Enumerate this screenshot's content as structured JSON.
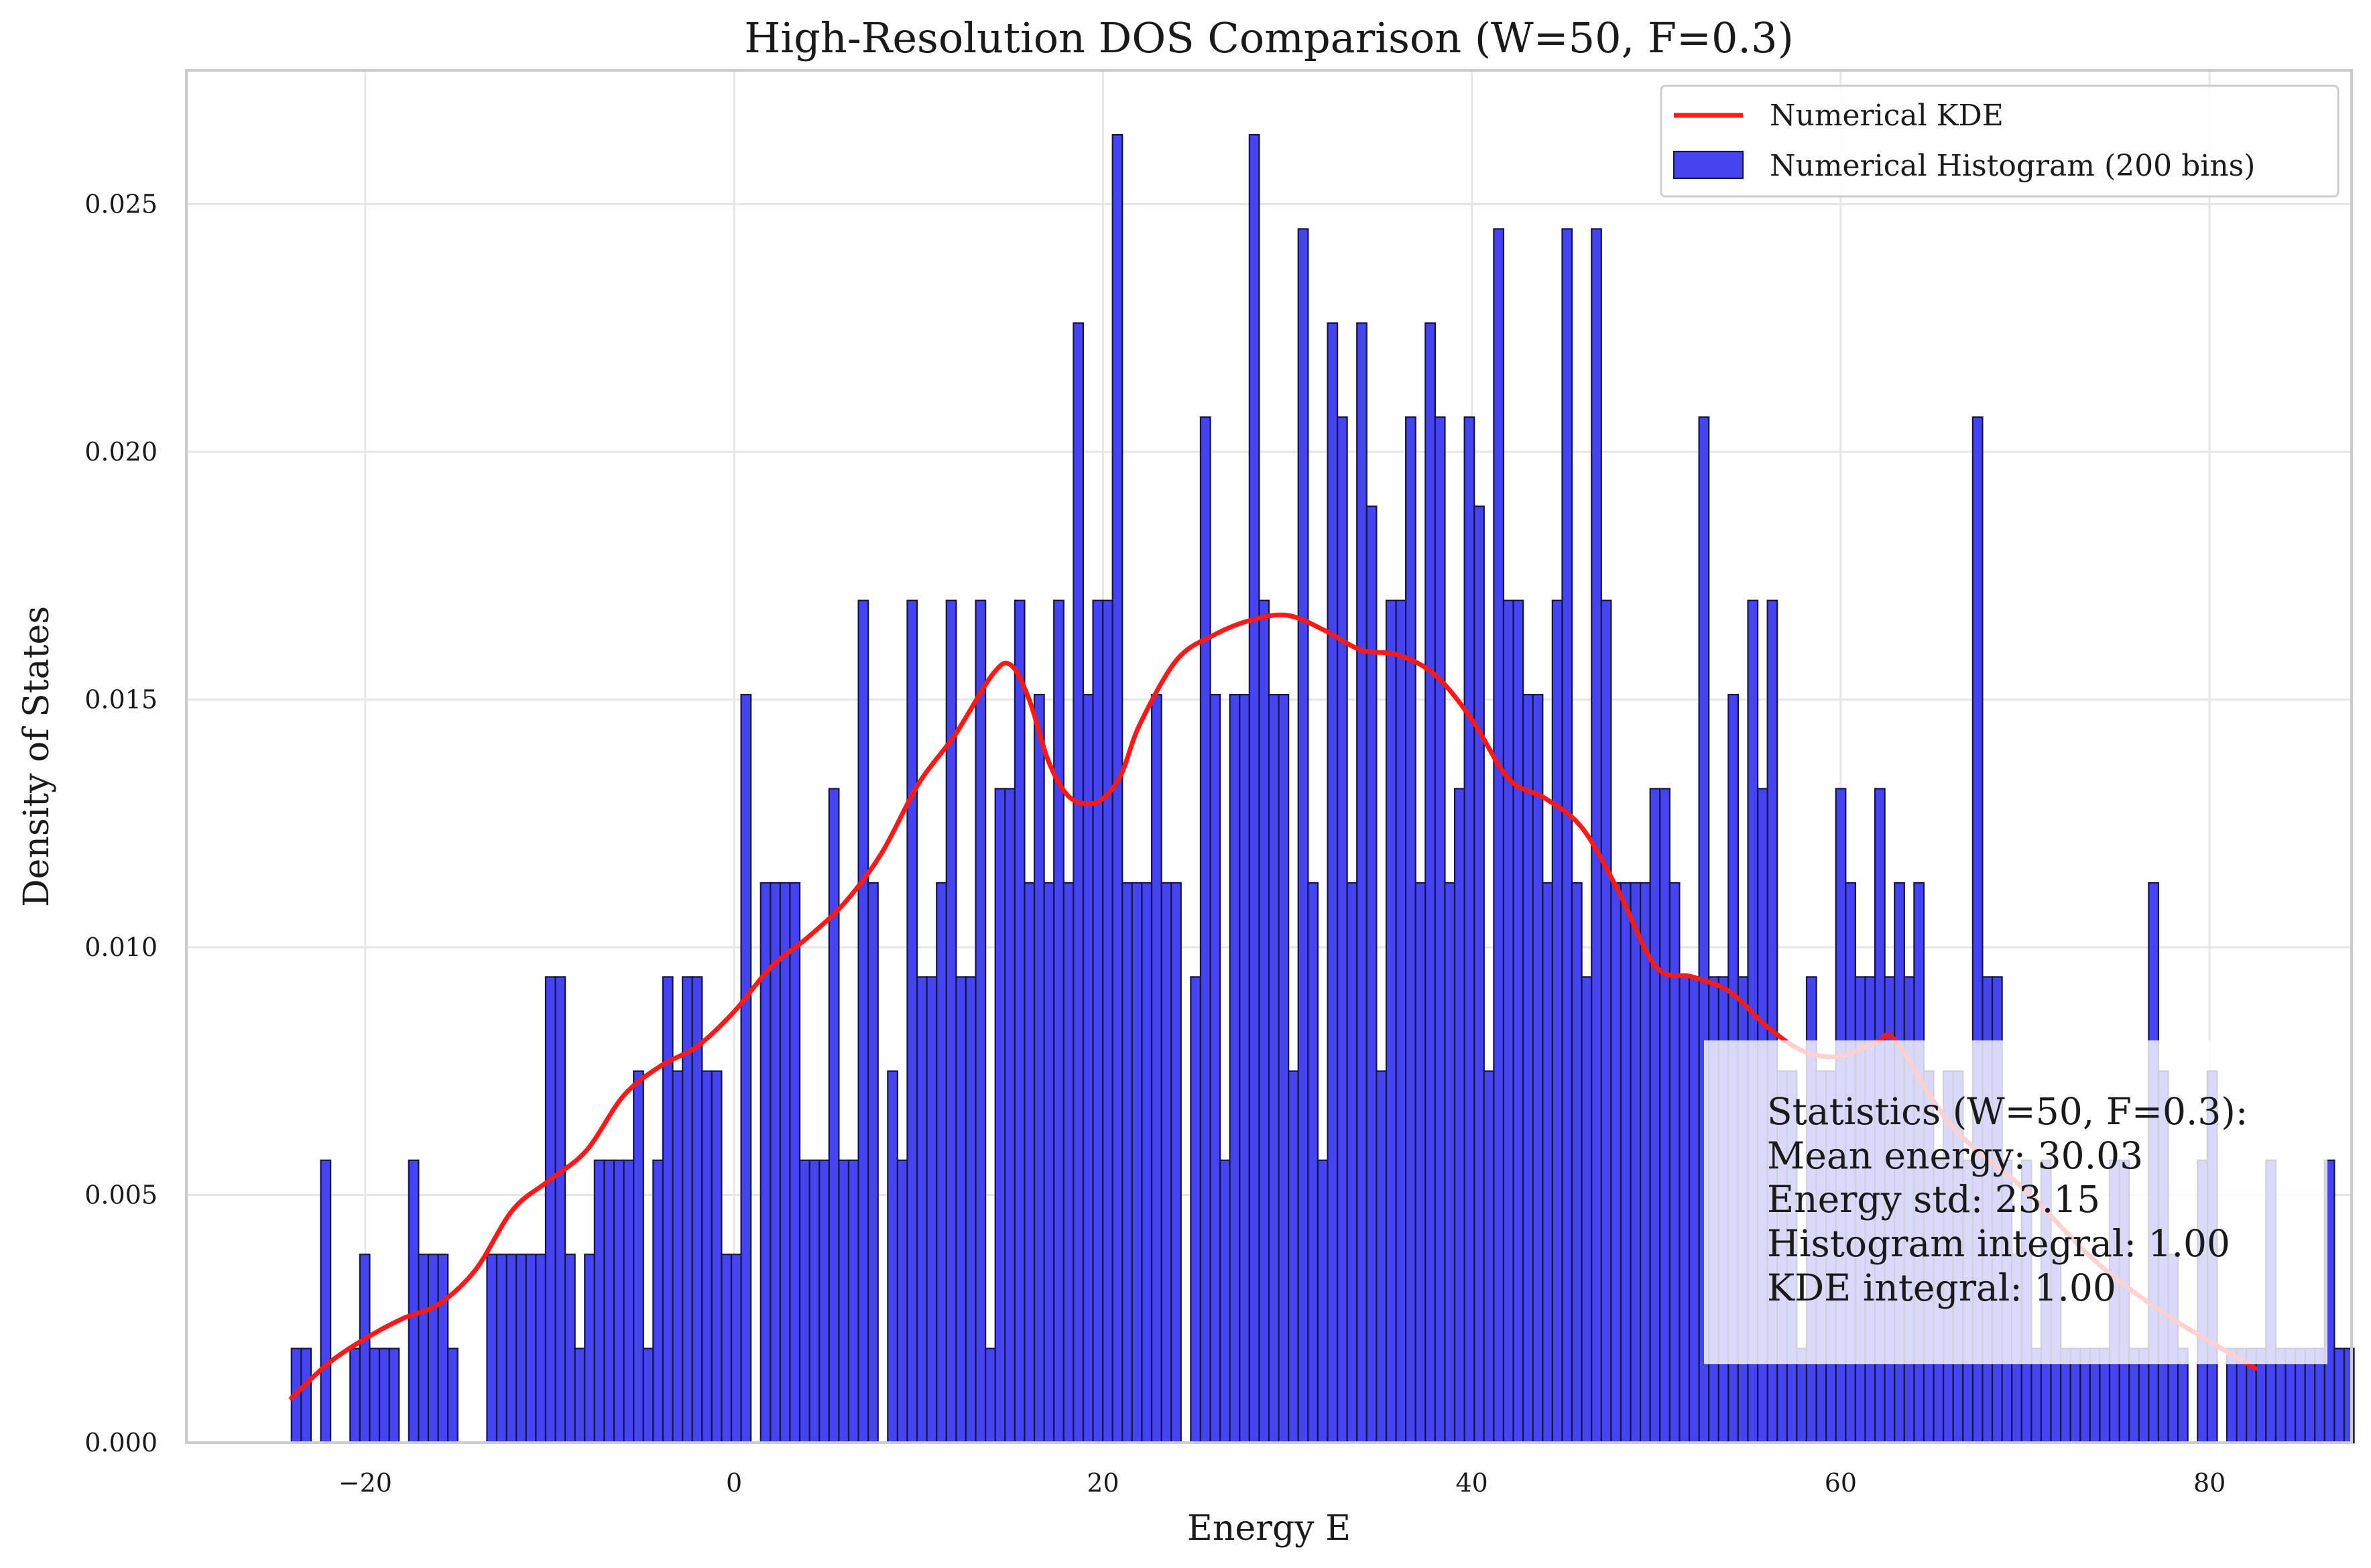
{
  "chart_data": {
    "type": "bar",
    "title": "High-Resolution DOS Comparison (W=50, F=0.3)",
    "xlabel": "Energy E",
    "ylabel": "Density of States",
    "xlim": [
      -29.7,
      87.7
    ],
    "ylim": [
      0,
      0.0277
    ],
    "x_ticks": [
      -20,
      0,
      20,
      40,
      60,
      80
    ],
    "x_tick_labels": [
      "−20",
      "0",
      "20",
      "40",
      "60",
      "80"
    ],
    "y_ticks": [
      0,
      0.005,
      0.01,
      0.015,
      0.02,
      0.025
    ],
    "y_tick_labels": [
      "0.000",
      "0.005",
      "0.010",
      "0.015",
      "0.020",
      "0.025"
    ],
    "grid": true,
    "legend_position": "upper right",
    "legend": [
      {
        "label": "Numerical KDE",
        "kind": "line",
        "color": "#ff1a1a"
      },
      {
        "label": "Numerical Histogram (200 bins)",
        "kind": "patch",
        "color": "#4444f0"
      }
    ],
    "histogram": {
      "name": "Numerical Histogram (200 bins)",
      "bin_start": -24.0,
      "bin_width": 0.53,
      "color": "#4444f0",
      "edge_color": "#15154a",
      "values": [
        0.0019,
        0.0019,
        0,
        0.0057,
        0,
        0,
        0.0019,
        0.0038,
        0.0019,
        0.0019,
        0.0019,
        0,
        0.0057,
        0.0038,
        0.0038,
        0.0038,
        0.0019,
        0,
        0,
        0,
        0.0038,
        0.0038,
        0.0038,
        0.0038,
        0.0038,
        0.0038,
        0.0094,
        0.0094,
        0.0038,
        0.0019,
        0.0038,
        0.0057,
        0.0057,
        0.0057,
        0.0057,
        0.0075,
        0.0019,
        0.0057,
        0.0094,
        0.0075,
        0.0094,
        0.0094,
        0.0075,
        0.0075,
        0.0038,
        0.0038,
        0.0151,
        0,
        0.0113,
        0.0113,
        0.0113,
        0.0113,
        0.0057,
        0.0057,
        0.0057,
        0.0132,
        0.0057,
        0.0057,
        0.017,
        0.0113,
        0,
        0.0075,
        0.0057,
        0.017,
        0.0094,
        0.0094,
        0.0113,
        0.017,
        0.0094,
        0.0094,
        0.017,
        0.0019,
        0.0132,
        0.0132,
        0.017,
        0.0113,
        0.0151,
        0.0113,
        0.017,
        0.0113,
        0.0226,
        0.0151,
        0.017,
        0.017,
        0.0264,
        0.0113,
        0.0113,
        0.0113,
        0.0151,
        0.0113,
        0.0113,
        0,
        0.0094,
        0.0207,
        0.0151,
        0.0057,
        0.0151,
        0.0151,
        0.0264,
        0.017,
        0.0151,
        0.0151,
        0.0075,
        0.0245,
        0.0113,
        0.0057,
        0.0226,
        0.0207,
        0.0113,
        0.0226,
        0.0189,
        0.0075,
        0.017,
        0.017,
        0.0207,
        0.0113,
        0.0226,
        0.0207,
        0.0113,
        0.0132,
        0.0207,
        0.0189,
        0.0075,
        0.0245,
        0.017,
        0.017,
        0.0151,
        0.0151,
        0.0113,
        0.017,
        0.0245,
        0.0113,
        0.0094,
        0.0245,
        0.017,
        0.0113,
        0.0113,
        0.0113,
        0.0113,
        0.0132,
        0.0132,
        0.0113,
        0.0094,
        0.0094,
        0.0207,
        0.0094,
        0.0094,
        0.0151,
        0.0094,
        0.017,
        0.0132,
        0.017,
        0.0075,
        0.0075,
        0.0019,
        0.0094,
        0.0075,
        0.0075,
        0.0132,
        0.0113,
        0.0094,
        0.0094,
        0.0132,
        0.0094,
        0.0113,
        0.0094,
        0.0113,
        0.0075,
        0.0057,
        0.0075,
        0.0075,
        0.0057,
        0.0207,
        0.0094,
        0.0094,
        0.0057,
        0.0038,
        0.0057,
        0.0019,
        0.0057,
        0.0038,
        0.0019,
        0.0019,
        0.0019,
        0.0019,
        0.0019,
        0.0057,
        0.0057,
        0.0019,
        0.0019,
        0.0113,
        0.0075,
        0.0038,
        0.0019,
        0,
        0.0057,
        0.0075,
        0,
        0.0019,
        0.0019,
        0.0019,
        0.0019,
        0.0057,
        0.0019,
        0.0019,
        0.0019,
        0.0019,
        0.0019,
        0.0057,
        0.0019,
        0.0019
      ]
    },
    "kde": {
      "name": "Numerical KDE",
      "color": "#ff1a1a",
      "x": [
        -24,
        -22,
        -20,
        -18,
        -16,
        -14,
        -12,
        -10,
        -8,
        -6,
        -4,
        -2,
        0,
        2,
        4,
        6,
        8,
        10,
        12,
        14,
        15,
        16,
        17,
        18,
        19,
        20,
        21,
        22,
        24,
        26,
        28,
        30,
        32,
        34,
        36,
        38,
        40,
        42,
        44,
        46,
        48,
        50,
        52,
        54,
        56,
        58,
        60,
        62,
        63,
        66,
        70,
        74,
        78,
        82.5
      ],
      "y": [
        0.0009,
        0.0016,
        0.0021,
        0.0025,
        0.0028,
        0.0035,
        0.0047,
        0.0053,
        0.0059,
        0.007,
        0.0076,
        0.008,
        0.0087,
        0.0096,
        0.0102,
        0.0109,
        0.0119,
        0.0133,
        0.0143,
        0.0155,
        0.0157,
        0.015,
        0.0138,
        0.0131,
        0.0129,
        0.013,
        0.0135,
        0.0145,
        0.0158,
        0.0163,
        0.0166,
        0.0167,
        0.0164,
        0.016,
        0.0159,
        0.0155,
        0.0146,
        0.0134,
        0.013,
        0.0124,
        0.0111,
        0.0096,
        0.0094,
        0.0091,
        0.0084,
        0.0079,
        0.0078,
        0.0081,
        0.0081,
        0.0064,
        0.0051,
        0.0036,
        0.0025,
        0.0015
      ]
    },
    "annotation": {
      "lines": [
        "Statistics (W=50, F=0.3):",
        "Mean energy: 30.03",
        "Energy std: 23.15",
        "Histogram integral: 1.00",
        "KDE integral: 1.00"
      ],
      "position": "lower right"
    }
  }
}
